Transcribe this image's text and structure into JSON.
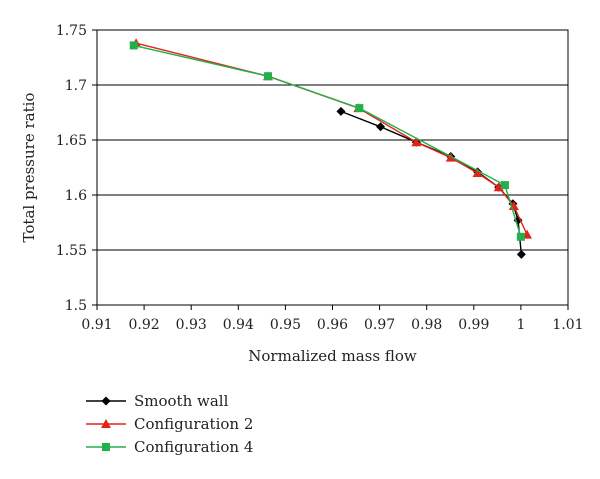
{
  "chart_data": {
    "type": "line",
    "title": "",
    "xlabel": "Normalized mass flow",
    "ylabel": "Total pressure ratio",
    "xlim": [
      0.91,
      1.01
    ],
    "ylim": [
      1.5,
      1.75
    ],
    "xticks": [
      0.91,
      0.92,
      0.93,
      0.94,
      0.95,
      0.96,
      0.97,
      0.98,
      0.99,
      1,
      1.01
    ],
    "xtick_labels": [
      "0.91",
      "0.92",
      "0.93",
      "0.94",
      "0.95",
      "0.96",
      "0.97",
      "0.98",
      "0.99",
      "1",
      "1.01"
    ],
    "yticks": [
      1.5,
      1.55,
      1.6,
      1.65,
      1.7,
      1.75
    ],
    "ytick_labels": [
      "1.5",
      "1.55",
      "1.6",
      "1.65",
      "1.7",
      "1.75"
    ],
    "grid": "horizontal",
    "legend_position": "bottom-left",
    "series": [
      {
        "name": "Smooth wall",
        "color": "#000000",
        "marker": "diamond",
        "x": [
          0.9618,
          0.9702,
          0.9778,
          0.9851,
          0.9908,
          0.9953,
          0.9983,
          0.9994,
          1.0001
        ],
        "y": [
          1.676,
          1.662,
          1.648,
          1.635,
          1.621,
          1.607,
          1.592,
          1.577,
          1.546
        ]
      },
      {
        "name": "Configuration 2",
        "color": "#e2231a",
        "marker": "triangle",
        "x": [
          0.9183,
          0.9463,
          0.9655,
          0.9778,
          0.9851,
          0.9908,
          0.9953,
          0.9985,
          1.0013
        ],
        "y": [
          1.738,
          1.708,
          1.679,
          1.648,
          1.634,
          1.62,
          1.607,
          1.59,
          1.564
        ]
      },
      {
        "name": "Configuration 4",
        "color": "#22b04b",
        "marker": "square",
        "x": [
          0.9178,
          0.9463,
          0.9657,
          0.9966,
          1.0
        ],
        "y": [
          1.736,
          1.708,
          1.679,
          1.609,
          1.562
        ]
      }
    ]
  }
}
